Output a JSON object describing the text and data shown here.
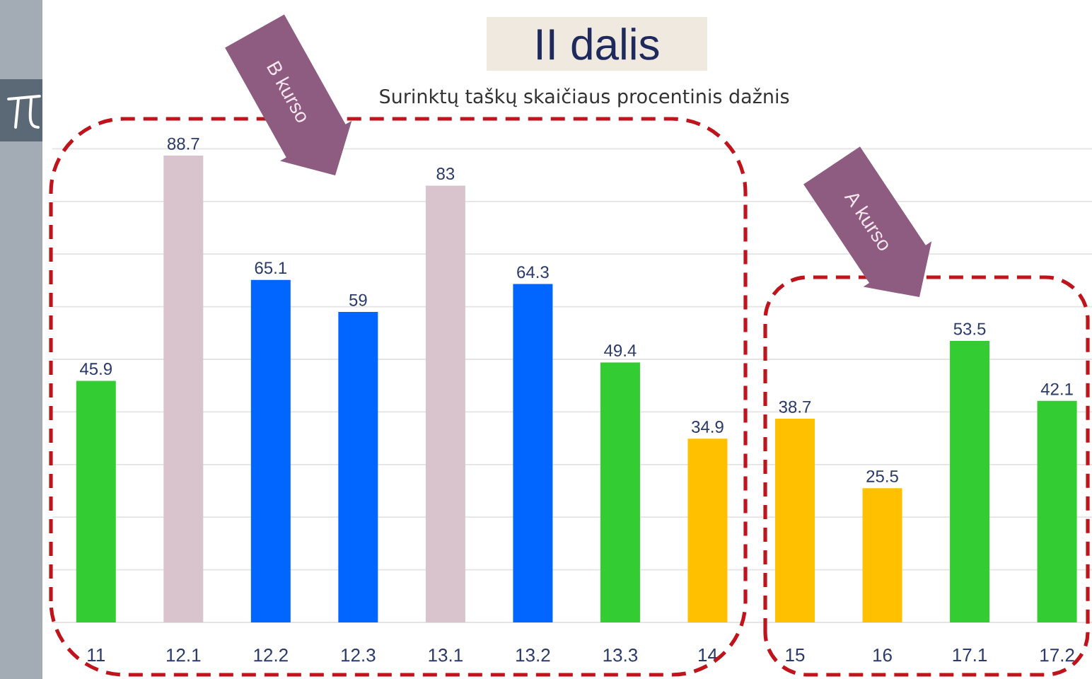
{
  "chart_data": {
    "type": "bar",
    "title": "II dalis",
    "subtitle": "Surinktų taškų skaičiaus procentinis dažnis",
    "categories": [
      "11",
      "12.1",
      "12.2",
      "12.3",
      "13.1",
      "13.2",
      "13.3",
      "14",
      "15",
      "16",
      "17.1",
      "17.2"
    ],
    "values": [
      45.9,
      88.7,
      65.1,
      59,
      83,
      64.3,
      49.4,
      34.9,
      38.7,
      25.5,
      53.5,
      42.1
    ],
    "colors": [
      "#33cc33",
      "#d9c3cc",
      "#0066ff",
      "#0066ff",
      "#d9c3cc",
      "#0066ff",
      "#33cc33",
      "#ffc000",
      "#ffc000",
      "#ffc000",
      "#33cc33",
      "#33cc33"
    ],
    "data_labels": true,
    "ylim": [
      0,
      90
    ],
    "yticks": [
      {
        "value": 0,
        "label": null
      },
      {
        "value": 10,
        "label": null
      },
      {
        "value": 20,
        "label": null
      },
      {
        "value": 30,
        "label": null
      },
      {
        "value": 40,
        "label": null
      },
      {
        "value": 50,
        "label": null
      },
      {
        "value": 60,
        "label": null
      },
      {
        "value": 70,
        "label": null
      },
      {
        "value": 80,
        "label": null
      },
      {
        "value": 90,
        "label": null
      }
    ],
    "grid": "y",
    "tick_labels": "x",
    "annotations": [
      "B kurso",
      "A kurso"
    ]
  }
}
